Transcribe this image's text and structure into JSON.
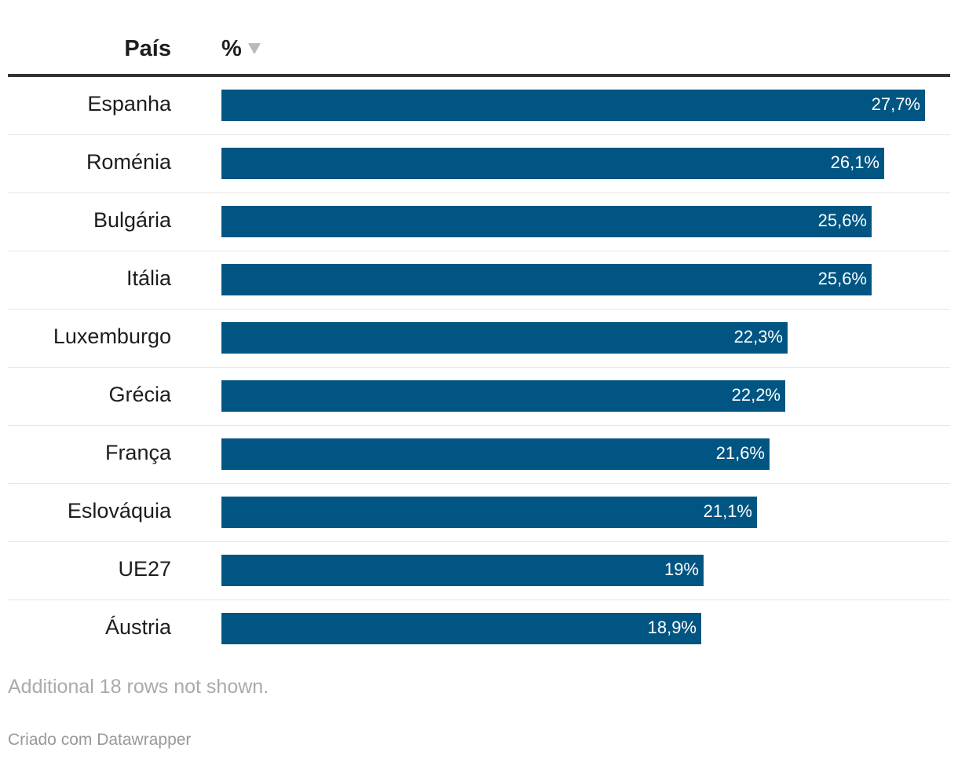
{
  "header": {
    "country_label": "País",
    "value_label": "%",
    "sort_icon": "sort-descending-icon"
  },
  "colors": {
    "bar": "#005583",
    "bar_label": "#ffffff"
  },
  "chart_data": {
    "type": "bar",
    "orientation": "horizontal",
    "categories": [
      "Espanha",
      "Roménia",
      "Bulgária",
      "Itália",
      "Luxemburgo",
      "Grécia",
      "França",
      "Eslováquia",
      "UE27",
      "Áustria"
    ],
    "values": [
      27.7,
      26.1,
      25.6,
      25.6,
      22.3,
      22.2,
      21.6,
      21.1,
      19,
      18.9
    ],
    "value_labels": [
      "27,7%",
      "26,1%",
      "25,6%",
      "25,6%",
      "22,3%",
      "22,2%",
      "21,6%",
      "21,1%",
      "19%",
      "18,9%"
    ],
    "xlim": [
      0,
      28.7
    ],
    "grid": false
  },
  "footer": {
    "note": "Additional 18 rows not shown.",
    "credit": "Criado com Datawrapper"
  }
}
